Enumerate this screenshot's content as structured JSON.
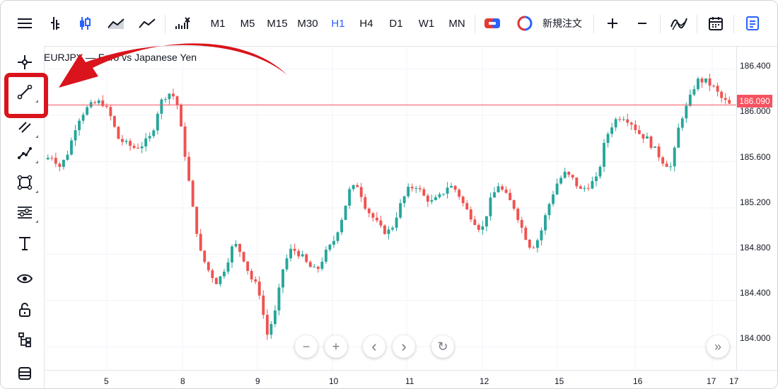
{
  "toolbar": {
    "timeframes": [
      {
        "label": "M1",
        "active": false
      },
      {
        "label": "M5",
        "active": false
      },
      {
        "label": "M15",
        "active": false
      },
      {
        "label": "M30",
        "active": false
      },
      {
        "label": "H1",
        "active": true
      },
      {
        "label": "H4",
        "active": false
      },
      {
        "label": "D1",
        "active": false
      },
      {
        "label": "W1",
        "active": false
      },
      {
        "label": "MN",
        "active": false
      }
    ],
    "new_order_label": "新規注文",
    "icons": [
      "menu-icon",
      "bar-chart-icon",
      "candlestick-icon",
      "area-chart-icon",
      "line-chart-icon",
      "indicator-icon",
      "one-click-trading-icon",
      "new-order-icon",
      "zoom-in-icon",
      "zoom-out-icon",
      "indicators-icon",
      "calendar-icon",
      "notes-icon"
    ]
  },
  "left_tools": [
    "crosshair-icon",
    "trend-line-icon",
    "multi-line-icon",
    "path-icon",
    "rectangle-icon",
    "fib-icon",
    "text-icon",
    "eye-icon",
    "lock-icon",
    "object-tree-icon",
    "trash-icon"
  ],
  "chart": {
    "symbol": "EURJPY — Euro vs Japanese Yen",
    "current_price": "186.090",
    "price_labels": [
      "186.400",
      "186.000",
      "185.600",
      "185.200",
      "184.800",
      "184.400",
      "184.000"
    ],
    "time_labels": [
      "5",
      "8",
      "9",
      "10",
      "11",
      "12",
      "15",
      "16",
      "17",
      "17"
    ],
    "nav_buttons": [
      "−",
      "+",
      "‹",
      "›",
      "↻",
      "»"
    ]
  },
  "annotation": {
    "arrow_color": "#d9141d",
    "highlight_color": "#d9141d"
  },
  "colors": {
    "bull": "#26a69a",
    "bear": "#ef5350",
    "accent": "#2962ff",
    "price_line": "#f7525f"
  },
  "chart_data": {
    "type": "candlestick",
    "ylim": [
      183.8,
      186.6
    ],
    "x_labels": [
      "5",
      "8",
      "9",
      "10",
      "11",
      "12",
      "15",
      "16",
      "17",
      "17"
    ],
    "close_path": [
      185.62,
      185.65,
      185.55,
      185.7,
      185.95,
      186.05,
      186.1,
      186.12,
      186.0,
      185.8,
      185.75,
      185.72,
      185.75,
      185.82,
      186.1,
      186.2,
      186.15,
      185.7,
      185.2,
      184.8,
      184.65,
      184.55,
      184.7,
      184.9,
      184.8,
      184.6,
      184.5,
      184.1,
      184.3,
      184.7,
      184.85,
      184.8,
      184.7,
      184.65,
      184.8,
      184.9,
      185.1,
      185.35,
      185.4,
      185.2,
      185.1,
      185.0,
      185.0,
      185.2,
      185.35,
      185.4,
      185.3,
      185.25,
      185.3,
      185.4,
      185.35,
      185.2,
      185.1,
      185.0,
      185.25,
      185.4,
      185.3,
      185.2,
      185.0,
      184.85,
      184.95,
      185.2,
      185.4,
      185.5,
      185.45,
      185.35,
      185.4,
      185.45,
      185.8,
      185.95,
      186.0,
      185.95,
      185.85,
      185.8,
      185.7,
      185.6,
      185.55,
      185.95,
      186.1,
      186.3,
      186.3,
      186.25,
      186.15,
      186.09
    ]
  }
}
